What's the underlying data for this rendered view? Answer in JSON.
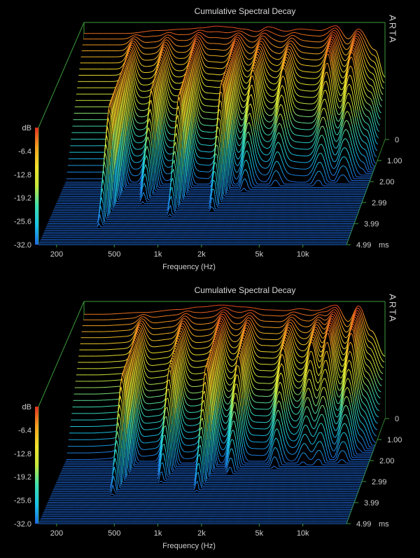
{
  "chart_data": [
    {
      "type": "waterfall-3d",
      "title": "Cumulative Spectral Decay",
      "brand": "ARTA",
      "xlabel": "Frequency (Hz)",
      "y_unit": "dB",
      "z_unit": "ms",
      "x_ticks": [
        "200",
        "500",
        "1k",
        "2k",
        "5k",
        "10k"
      ],
      "x_tick_values": [
        200,
        500,
        1000,
        2000,
        5000,
        10000
      ],
      "xlim": [
        150,
        20000
      ],
      "y_ticks": [
        "-6.4",
        "-12.8",
        "-19.2",
        "-25.6",
        "-32.0"
      ],
      "ylim": [
        -32,
        0
      ],
      "z_ticks": [
        "0",
        "1.00",
        "2.00",
        "2.99",
        "3.99",
        "4.99"
      ],
      "zlim": [
        0,
        4.99
      ],
      "series_count": 60,
      "base_response": [
        {
          "f": 200,
          "db": -3.0
        },
        {
          "f": 300,
          "db": -3.0
        },
        {
          "f": 500,
          "db": -2.2
        },
        {
          "f": 800,
          "db": -1.8
        },
        {
          "f": 1000,
          "db": -1.5
        },
        {
          "f": 1300,
          "db": -1.0
        },
        {
          "f": 1600,
          "db": -1.3
        },
        {
          "f": 2000,
          "db": -1.8
        },
        {
          "f": 2500,
          "db": -2.5
        },
        {
          "f": 3000,
          "db": -1.2
        },
        {
          "f": 4000,
          "db": -2.4
        },
        {
          "f": 5000,
          "db": -1.8
        },
        {
          "f": 7000,
          "db": -2.2
        },
        {
          "f": 9000,
          "db": -0.9
        },
        {
          "f": 11000,
          "db": -4.5
        },
        {
          "f": 13000,
          "db": -1.8
        },
        {
          "f": 17000,
          "db": -7.5
        },
        {
          "f": 20000,
          "db": -15.0
        }
      ],
      "resonances": [
        {
          "f": 350,
          "db": -9.0,
          "decay_ms": 3.0
        },
        {
          "f": 600,
          "db": -14.0,
          "decay_ms": 2.0
        },
        {
          "f": 1000,
          "db": -11.0,
          "decay_ms": 2.5
        },
        {
          "f": 1900,
          "db": -7.0,
          "decay_ms": 2.2
        },
        {
          "f": 2800,
          "db": -12.0,
          "decay_ms": 1.4
        },
        {
          "f": 4500,
          "db": -12.0,
          "decay_ms": 1.2
        },
        {
          "f": 9000,
          "db": -5.0,
          "decay_ms": 1.0
        },
        {
          "f": 13000,
          "db": -6.0,
          "decay_ms": 0.9
        }
      ],
      "colormap": [
        "#1e6be0",
        "#19c3e8",
        "#3fe0b0",
        "#c8e83c",
        "#f2e02a",
        "#f5a020",
        "#e03020"
      ]
    },
    {
      "type": "waterfall-3d",
      "title": "Cumulative Spectral Decay",
      "brand": "ARTA",
      "xlabel": "Frequency (Hz)",
      "y_unit": "dB",
      "z_unit": "ms",
      "x_ticks": [
        "200",
        "500",
        "1k",
        "2k",
        "5k",
        "10k"
      ],
      "x_tick_values": [
        200,
        500,
        1000,
        2000,
        5000,
        10000
      ],
      "xlim": [
        150,
        20000
      ],
      "y_ticks": [
        "-6.4",
        "-12.8",
        "-19.2",
        "-25.6",
        "-32.0"
      ],
      "ylim": [
        -32,
        0
      ],
      "z_ticks": [
        "0",
        "1.00",
        "2.00",
        "2.99",
        "3.99",
        "4.99"
      ],
      "zlim": [
        0,
        4.99
      ],
      "series_count": 60,
      "base_response": [
        {
          "f": 200,
          "db": -3.5
        },
        {
          "f": 400,
          "db": -3.0
        },
        {
          "f": 700,
          "db": -2.2
        },
        {
          "f": 1000,
          "db": -1.5
        },
        {
          "f": 1400,
          "db": -1.0
        },
        {
          "f": 2000,
          "db": -1.5
        },
        {
          "f": 3000,
          "db": -2.3
        },
        {
          "f": 4000,
          "db": -2.5
        },
        {
          "f": 5000,
          "db": -2.0
        },
        {
          "f": 6500,
          "db": -2.5
        },
        {
          "f": 9000,
          "db": -1.0
        },
        {
          "f": 11000,
          "db": -5.5
        },
        {
          "f": 13000,
          "db": -1.2
        },
        {
          "f": 16000,
          "db": -8.0
        },
        {
          "f": 20000,
          "db": -15.0
        }
      ],
      "resonances": [
        {
          "f": 400,
          "db": -10.0,
          "decay_ms": 2.5
        },
        {
          "f": 800,
          "db": -14.0,
          "decay_ms": 2.0
        },
        {
          "f": 1500,
          "db": -10.0,
          "decay_ms": 2.3
        },
        {
          "f": 2300,
          "db": -12.0,
          "decay_ms": 1.6
        },
        {
          "f": 4500,
          "db": -11.0,
          "decay_ms": 1.3
        },
        {
          "f": 7000,
          "db": -9.0,
          "decay_ms": 1.1
        },
        {
          "f": 9000,
          "db": -5.0,
          "decay_ms": 1.0
        },
        {
          "f": 13000,
          "db": -5.0,
          "decay_ms": 0.9
        }
      ],
      "colormap": [
        "#1e6be0",
        "#19c3e8",
        "#3fe0b0",
        "#c8e83c",
        "#f2e02a",
        "#f5a020",
        "#e03020"
      ]
    }
  ]
}
